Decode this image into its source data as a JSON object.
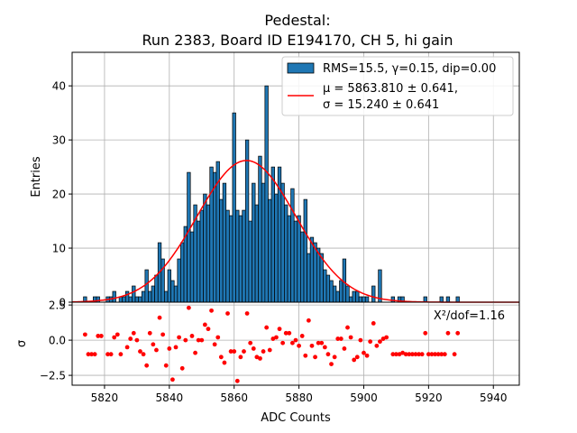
{
  "title_line1": "Pedestal:",
  "title_line2": "Run 2383, Board ID E194170, CH 5, hi gain",
  "colors": {
    "bar_fill": "#1f77b4",
    "bar_edge": "#000000",
    "fit_line": "#ff0000",
    "residual_points": "#ff0000",
    "grid": "#b0b0b0"
  },
  "legend": {
    "placement": "upper right",
    "hist_label": "RMS=15.5, γ=0.15, dip=0.00",
    "fit_line1": "μ = 5863.810 ± 0.641,",
    "fit_line2": "σ = 15.240 ± 0.641"
  },
  "chi2_label": "X²/dof=1.16",
  "chart_data": [
    {
      "type": "bar",
      "panel": "histogram",
      "title": "Pedestal:\nRun 2383, Board ID E194170, CH 5, hi gain",
      "ylabel": "Entries",
      "xlabel": "",
      "xlim": [
        5810,
        5948
      ],
      "ylim": [
        0,
        46.2
      ],
      "y_ticks": [
        0,
        10,
        20,
        30,
        40
      ],
      "grid": true,
      "legend": "top-right",
      "bin_width": 1,
      "bins": [
        [
          5814,
          1
        ],
        [
          5817,
          1
        ],
        [
          5818,
          1
        ],
        [
          5821,
          1
        ],
        [
          5822,
          1
        ],
        [
          5823,
          2
        ],
        [
          5825,
          1
        ],
        [
          5826,
          1
        ],
        [
          5827,
          2
        ],
        [
          5828,
          1
        ],
        [
          5829,
          3
        ],
        [
          5830,
          1
        ],
        [
          5831,
          1
        ],
        [
          5832,
          2
        ],
        [
          5833,
          6
        ],
        [
          5834,
          2
        ],
        [
          5835,
          3
        ],
        [
          5836,
          5
        ],
        [
          5837,
          11
        ],
        [
          5838,
          8
        ],
        [
          5839,
          2
        ],
        [
          5840,
          6
        ],
        [
          5841,
          4
        ],
        [
          5842,
          3
        ],
        [
          5843,
          8
        ],
        [
          5844,
          11
        ],
        [
          5845,
          14
        ],
        [
          5846,
          24
        ],
        [
          5847,
          13
        ],
        [
          5848,
          18
        ],
        [
          5849,
          15
        ],
        [
          5850,
          17
        ],
        [
          5851,
          20
        ],
        [
          5852,
          18
        ],
        [
          5853,
          25
        ],
        [
          5854,
          24
        ],
        [
          5855,
          26
        ],
        [
          5856,
          19
        ],
        [
          5857,
          22
        ],
        [
          5858,
          17
        ],
        [
          5859,
          16
        ],
        [
          5860,
          35
        ],
        [
          5861,
          17
        ],
        [
          5862,
          16
        ],
        [
          5863,
          17
        ],
        [
          5864,
          30
        ],
        [
          5865,
          15
        ],
        [
          5866,
          22
        ],
        [
          5867,
          18
        ],
        [
          5868,
          27
        ],
        [
          5869,
          22
        ],
        [
          5870,
          40
        ],
        [
          5871,
          19
        ],
        [
          5872,
          25
        ],
        [
          5873,
          20
        ],
        [
          5874,
          25
        ],
        [
          5875,
          22
        ],
        [
          5876,
          18
        ],
        [
          5877,
          16
        ],
        [
          5878,
          21
        ],
        [
          5879,
          15
        ],
        [
          5880,
          16
        ],
        [
          5881,
          13
        ],
        [
          5882,
          19
        ],
        [
          5883,
          9
        ],
        [
          5884,
          12
        ],
        [
          5885,
          11
        ],
        [
          5886,
          10
        ],
        [
          5887,
          9
        ],
        [
          5888,
          6
        ],
        [
          5889,
          5
        ],
        [
          5890,
          4
        ],
        [
          5891,
          3
        ],
        [
          5892,
          2
        ],
        [
          5893,
          4
        ],
        [
          5894,
          8
        ],
        [
          5895,
          3
        ],
        [
          5896,
          1
        ],
        [
          5897,
          2
        ],
        [
          5898,
          2
        ],
        [
          5899,
          1
        ],
        [
          5900,
          1
        ],
        [
          5901,
          1
        ],
        [
          5903,
          3
        ],
        [
          5905,
          6
        ],
        [
          5909,
          1
        ],
        [
          5911,
          1
        ],
        [
          5912,
          1
        ],
        [
          5919,
          1
        ],
        [
          5924,
          1
        ],
        [
          5926,
          1
        ],
        [
          5929,
          1
        ]
      ],
      "fit": {
        "type": "gaussian",
        "mu": 5863.81,
        "sigma": 15.24,
        "amplitude": 26.2
      }
    },
    {
      "type": "scatter",
      "panel": "residuals",
      "xlabel": "ADC Counts",
      "ylabel": "σ",
      "xlim": [
        5810,
        5948
      ],
      "ylim": [
        -3.2,
        2.7
      ],
      "x_ticks": [
        5820,
        5840,
        5860,
        5880,
        5900,
        5920,
        5940
      ],
      "y_ticks": [
        -2.5,
        0.0,
        2.5
      ],
      "y_tick_labels": [
        "−2.5",
        "0.0",
        "2.5"
      ],
      "grid": true,
      "points": [
        [
          5814,
          0.4
        ],
        [
          5815,
          -1.0
        ],
        [
          5816,
          -1.0
        ],
        [
          5817,
          -1.0
        ],
        [
          5818,
          0.3
        ],
        [
          5819,
          0.3
        ],
        [
          5821,
          -1.0
        ],
        [
          5822,
          -1.0
        ],
        [
          5823,
          0.2
        ],
        [
          5824,
          0.4
        ],
        [
          5825,
          -1.0
        ],
        [
          5827,
          -0.5
        ],
        [
          5828,
          0.1
        ],
        [
          5829,
          0.5
        ],
        [
          5830,
          0.0
        ],
        [
          5831,
          -0.8
        ],
        [
          5832,
          -1.0
        ],
        [
          5833,
          -1.8
        ],
        [
          5834,
          0.5
        ],
        [
          5835,
          -0.3
        ],
        [
          5836,
          -0.7
        ],
        [
          5837,
          1.6
        ],
        [
          5838,
          0.4
        ],
        [
          5839,
          -1.8
        ],
        [
          5840,
          -0.6
        ],
        [
          5841,
          -2.8
        ],
        [
          5842,
          -0.5
        ],
        [
          5843,
          0.2
        ],
        [
          5844,
          -2.0
        ],
        [
          5845,
          0.0
        ],
        [
          5846,
          2.3
        ],
        [
          5847,
          0.3
        ],
        [
          5848,
          -0.9
        ],
        [
          5849,
          0.0
        ],
        [
          5850,
          0.0
        ],
        [
          5851,
          1.1
        ],
        [
          5852,
          0.8
        ],
        [
          5853,
          2.1
        ],
        [
          5854,
          -0.3
        ],
        [
          5855,
          0.2
        ],
        [
          5856,
          -1.2
        ],
        [
          5857,
          -1.6
        ],
        [
          5858,
          1.9
        ],
        [
          5859,
          -0.8
        ],
        [
          5860,
          -0.8
        ],
        [
          5861,
          -2.9
        ],
        [
          5862,
          -1.2
        ],
        [
          5863,
          -0.8
        ],
        [
          5864,
          1.9
        ],
        [
          5865,
          -0.2
        ],
        [
          5866,
          -0.6
        ],
        [
          5867,
          -1.2
        ],
        [
          5868,
          -1.3
        ],
        [
          5869,
          -0.8
        ],
        [
          5870,
          0.9
        ],
        [
          5871,
          -0.7
        ],
        [
          5872,
          0.1
        ],
        [
          5873,
          0.2
        ],
        [
          5874,
          0.8
        ],
        [
          5875,
          -0.2
        ],
        [
          5876,
          0.5
        ],
        [
          5877,
          0.5
        ],
        [
          5878,
          -0.2
        ],
        [
          5879,
          0.0
        ],
        [
          5880,
          -0.4
        ],
        [
          5881,
          0.3
        ],
        [
          5882,
          -1.1
        ],
        [
          5883,
          1.4
        ],
        [
          5884,
          -0.4
        ],
        [
          5885,
          -1.2
        ],
        [
          5886,
          -0.2
        ],
        [
          5887,
          -0.2
        ],
        [
          5888,
          -0.5
        ],
        [
          5889,
          -1.0
        ],
        [
          5890,
          -1.7
        ],
        [
          5891,
          -1.2
        ],
        [
          5892,
          0.1
        ],
        [
          5893,
          0.1
        ],
        [
          5894,
          -0.6
        ],
        [
          5895,
          0.9
        ],
        [
          5896,
          0.2
        ],
        [
          5897,
          -1.4
        ],
        [
          5898,
          -1.2
        ],
        [
          5899,
          0.0
        ],
        [
          5900,
          -0.9
        ],
        [
          5901,
          -1.1
        ],
        [
          5902,
          -0.1
        ],
        [
          5903,
          1.2
        ],
        [
          5904,
          -0.4
        ],
        [
          5905,
          -0.1
        ],
        [
          5906,
          0.1
        ],
        [
          5907,
          0.2
        ],
        [
          5909,
          -1.0
        ],
        [
          5910,
          -1.0
        ],
        [
          5911,
          -1.0
        ],
        [
          5912,
          -0.9
        ],
        [
          5913,
          -1.0
        ],
        [
          5914,
          -1.0
        ],
        [
          5915,
          -1.0
        ],
        [
          5916,
          -1.0
        ],
        [
          5917,
          -1.0
        ],
        [
          5918,
          -1.0
        ],
        [
          5919,
          0.5
        ],
        [
          5920,
          -1.0
        ],
        [
          5921,
          -1.0
        ],
        [
          5922,
          -1.0
        ],
        [
          5923,
          -1.0
        ],
        [
          5924,
          -1.0
        ],
        [
          5925,
          -1.0
        ],
        [
          5926,
          0.5
        ],
        [
          5928,
          -1.0
        ],
        [
          5929,
          0.5
        ]
      ]
    }
  ]
}
